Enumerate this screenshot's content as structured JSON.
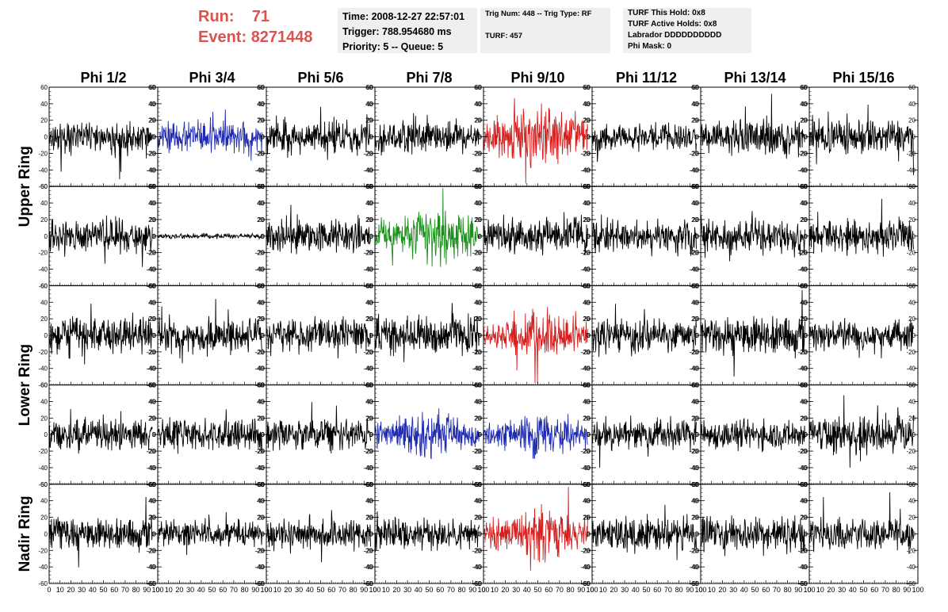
{
  "header": {
    "run_label": "Run:",
    "run_value": "71",
    "event_label": "Event:",
    "event_value": "8271448",
    "info1": [
      "Time: 2008-12-27 22:57:01",
      "Trigger: 788.954680 ms",
      "Priority: 5 -- Queue: 5"
    ],
    "info2": [
      "Trig Num: 448 -- Trig Type: RF",
      "TURF: 457"
    ],
    "info3": [
      "TURF This Hold: 0x8",
      "TURF Active Holds: 0x8",
      "Labrador DDDDDDDDDD",
      "Phi Mask: 0"
    ]
  },
  "colors": {
    "run_text": "#d9534f",
    "black": "#000000",
    "blue": "#1f2bb0",
    "red": "#d62020",
    "green": "#1a8f1a",
    "info_bg": "#efefef"
  },
  "chart_data": {
    "type": "line",
    "columns": [
      "Phi 1/2",
      "Phi 3/4",
      "Phi 5/6",
      "Phi 7/8",
      "Phi 9/10",
      "Phi 11/12",
      "Phi 13/14",
      "Phi 15/16"
    ],
    "ring_labels": [
      {
        "label": "Upper Ring",
        "rows": [
          0,
          1
        ]
      },
      {
        "label": "Lower Ring",
        "rows": [
          2,
          3
        ]
      },
      {
        "label": "Nadir Ring",
        "rows": [
          4,
          4
        ]
      }
    ],
    "xlim": [
      0,
      100
    ],
    "x_tick_labels": [
      "0",
      "10",
      "20",
      "30",
      "40",
      "50",
      "60",
      "70",
      "80",
      "90",
      "100"
    ],
    "ylim": [
      -60,
      60
    ],
    "y_tick_labels": [
      "60",
      "40",
      "20",
      "0",
      "-20",
      "-40",
      "-60"
    ],
    "panels": [
      [
        {
          "color": "black",
          "amplitude": 14,
          "span": [
            0,
            95
          ],
          "seed": 11
        },
        {
          "color": "blue",
          "amplitude": 12,
          "span": [
            0,
            96
          ],
          "seed": 12
        },
        {
          "color": "black",
          "amplitude": 14,
          "span": [
            0,
            96
          ],
          "seed": 13
        },
        {
          "color": "black",
          "amplitude": 14,
          "span": [
            0,
            96
          ],
          "seed": 14
        },
        {
          "color": "red",
          "amplitude": 24,
          "span": [
            0,
            96
          ],
          "seed": 15
        },
        {
          "color": "black",
          "amplitude": 12,
          "span": [
            0,
            96
          ],
          "seed": 16
        },
        {
          "color": "black",
          "amplitude": 14,
          "span": [
            0,
            96
          ],
          "seed": 17
        },
        {
          "color": "black",
          "amplitude": 15,
          "span": [
            0,
            96
          ],
          "seed": 18
        }
      ],
      [
        {
          "color": "black",
          "amplitude": 14,
          "span": [
            0,
            95
          ],
          "seed": 21
        },
        {
          "color": "black",
          "amplitude": 2,
          "span": [
            0,
            96
          ],
          "seed": 22
        },
        {
          "color": "black",
          "amplitude": 14,
          "span": [
            0,
            96
          ],
          "seed": 23
        },
        {
          "color": "green",
          "amplitude": 22,
          "span": [
            0,
            96
          ],
          "seed": 24
        },
        {
          "color": "black",
          "amplitude": 14,
          "span": [
            0,
            96
          ],
          "seed": 25
        },
        {
          "color": "black",
          "amplitude": 14,
          "span": [
            0,
            96
          ],
          "seed": 26
        },
        {
          "color": "black",
          "amplitude": 14,
          "span": [
            0,
            96
          ],
          "seed": 27
        },
        {
          "color": "black",
          "amplitude": 14,
          "span": [
            0,
            96
          ],
          "seed": 28
        }
      ],
      [
        {
          "color": "black",
          "amplitude": 15,
          "span": [
            0,
            95
          ],
          "seed": 31
        },
        {
          "color": "black",
          "amplitude": 14,
          "span": [
            0,
            96
          ],
          "seed": 32
        },
        {
          "color": "black",
          "amplitude": 13,
          "span": [
            0,
            96
          ],
          "seed": 33
        },
        {
          "color": "black",
          "amplitude": 15,
          "span": [
            0,
            96
          ],
          "seed": 34
        },
        {
          "color": "red",
          "amplitude": 17,
          "span": [
            0,
            96
          ],
          "seed": 35
        },
        {
          "color": "black",
          "amplitude": 13,
          "span": [
            0,
            96
          ],
          "seed": 36
        },
        {
          "color": "black",
          "amplitude": 16,
          "span": [
            0,
            96
          ],
          "seed": 37
        },
        {
          "color": "black",
          "amplitude": 12,
          "span": [
            0,
            96
          ],
          "seed": 38
        }
      ],
      [
        {
          "color": "black",
          "amplitude": 13,
          "span": [
            0,
            95
          ],
          "seed": 41
        },
        {
          "color": "black",
          "amplitude": 13,
          "span": [
            0,
            96
          ],
          "seed": 42
        },
        {
          "color": "black",
          "amplitude": 13,
          "span": [
            0,
            96
          ],
          "seed": 43
        },
        {
          "color": "blue",
          "amplitude": 18,
          "span": [
            0,
            96
          ],
          "seed": 44
        },
        {
          "color": "blue",
          "amplitude": 17,
          "span": [
            0,
            96
          ],
          "seed": 45
        },
        {
          "color": "black",
          "amplitude": 12,
          "span": [
            0,
            96
          ],
          "seed": 46
        },
        {
          "color": "black",
          "amplitude": 12,
          "span": [
            0,
            96
          ],
          "seed": 47
        },
        {
          "color": "black",
          "amplitude": 15,
          "span": [
            0,
            96
          ],
          "seed": 48
        }
      ],
      [
        {
          "color": "black",
          "amplitude": 13,
          "span": [
            0,
            95
          ],
          "seed": 51
        },
        {
          "color": "black",
          "amplitude": 11,
          "span": [
            0,
            96
          ],
          "seed": 52
        },
        {
          "color": "black",
          "amplitude": 13,
          "span": [
            0,
            96
          ],
          "seed": 53
        },
        {
          "color": "black",
          "amplitude": 13,
          "span": [
            0,
            96
          ],
          "seed": 54
        },
        {
          "color": "red",
          "amplitude": 20,
          "span": [
            0,
            96
          ],
          "seed": 55
        },
        {
          "color": "black",
          "amplitude": 14,
          "span": [
            0,
            96
          ],
          "seed": 56
        },
        {
          "color": "black",
          "amplitude": 15,
          "span": [
            0,
            96
          ],
          "seed": 57
        },
        {
          "color": "black",
          "amplitude": 13,
          "span": [
            0,
            96
          ],
          "seed": 58
        }
      ]
    ]
  }
}
